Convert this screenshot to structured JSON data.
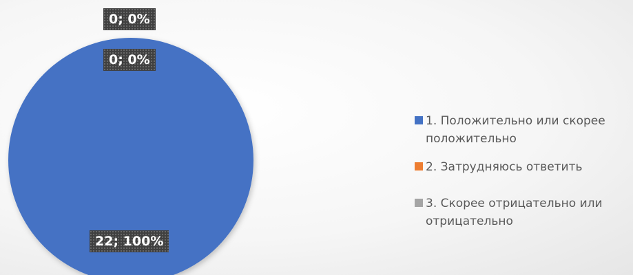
{
  "chart_data": {
    "type": "pie",
    "categories": [
      "1. Положительно или скорее положительно",
      "2. Затрудняюсь ответить",
      "3. Скорее отрицательно или отрицательно"
    ],
    "values": [
      22,
      0,
      0
    ],
    "percents": [
      100,
      0,
      0
    ],
    "colors": [
      "#4472c4",
      "#ed7d31",
      "#a5a5a5"
    ],
    "data_labels": [
      "22; 100%",
      "0; 0%",
      "0; 0%"
    ],
    "legend_position": "right"
  }
}
